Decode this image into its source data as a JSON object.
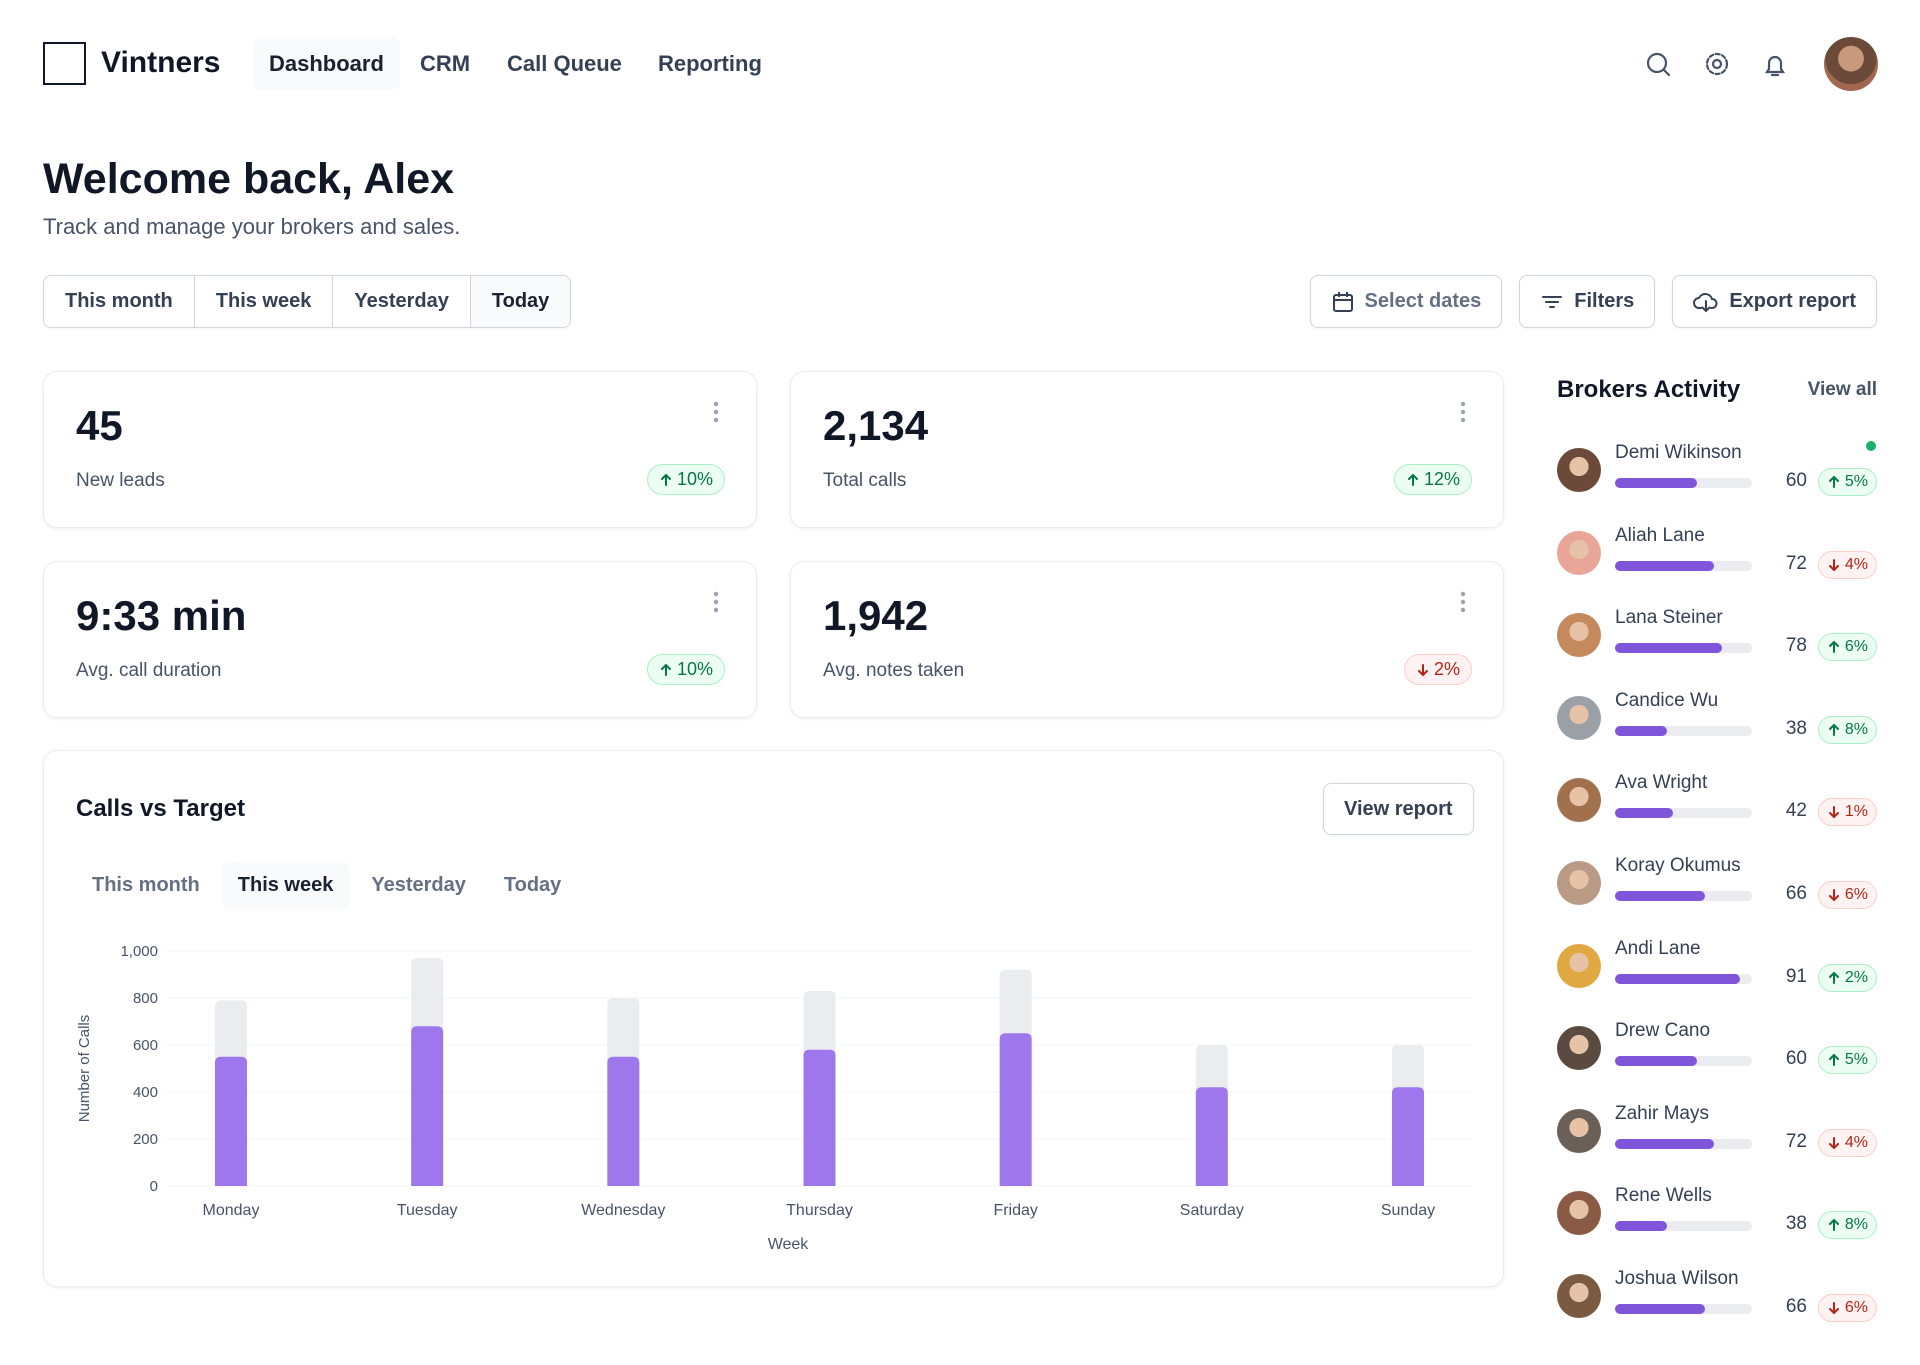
{
  "header": {
    "brand": "Vintners",
    "nav": [
      "Dashboard",
      "CRM",
      "Call Queue",
      "Reporting"
    ],
    "active_nav": 0
  },
  "welcome": {
    "title": "Welcome back, Alex",
    "subtitle": "Track and manage your brokers and sales."
  },
  "range_tabs": {
    "items": [
      "This month",
      "This week",
      "Yesterday",
      "Today"
    ],
    "active": 3
  },
  "actions": [
    "Select dates",
    "Filters",
    "Export report"
  ],
  "stats": [
    {
      "value": "45",
      "label": "New leads",
      "change": "10%",
      "trend": "up"
    },
    {
      "value": "2,134",
      "label": "Total calls",
      "change": "12%",
      "trend": "up"
    },
    {
      "value": "9:33 min",
      "label": "Avg. call duration",
      "change": "10%",
      "trend": "up"
    },
    {
      "value": "1,942",
      "label": "Avg. notes taken",
      "change": "2%",
      "trend": "down"
    }
  ],
  "chart_data": {
    "type": "bar",
    "title": "Calls vs Target",
    "button": "View report",
    "tabs": [
      "This month",
      "This week",
      "Yesterday",
      "Today"
    ],
    "active_tab": 1,
    "x_label": "Week",
    "y_label": "Number of Calls",
    "categories": [
      "Monday",
      "Tuesday",
      "Wednesday",
      "Thursday",
      "Friday",
      "Saturday",
      "Sunday"
    ],
    "series": [
      {
        "color": "#eaecf0",
        "values": [
          790,
          970,
          800,
          830,
          920,
          600,
          600
        ]
      },
      {
        "color": "#9e77ed",
        "values": [
          550,
          680,
          550,
          580,
          650,
          420,
          420
        ]
      }
    ],
    "ylim": [
      0,
      1000
    ],
    "yticks": [
      0,
      200,
      400,
      600,
      800,
      {
        "value": 1000,
        "label": "1,000"
      }
    ],
    "grid": true
  },
  "brokers": {
    "title": "Brokers Activity",
    "link": "View all",
    "items": [
      {
        "name": "Demi Wikinson",
        "value": 60,
        "change": "5%",
        "trend": "up"
      },
      {
        "name": "Aliah Lane",
        "value": 72,
        "change": "4%",
        "trend": "down"
      },
      {
        "name": "Lana Steiner",
        "value": 78,
        "change": "6%",
        "trend": "up"
      },
      {
        "name": "Candice Wu",
        "value": 38,
        "change": "8%",
        "trend": "up"
      },
      {
        "name": "Ava Wright",
        "value": 42,
        "change": "1%",
        "trend": "down"
      },
      {
        "name": "Koray Okumus",
        "value": 66,
        "change": "6%",
        "trend": "down"
      },
      {
        "name": "Andi Lane",
        "value": 91,
        "change": "2%",
        "trend": "up"
      },
      {
        "name": "Drew Cano",
        "value": 60,
        "change": "5%",
        "trend": "up"
      },
      {
        "name": "Zahir Mays",
        "value": 72,
        "change": "4%",
        "trend": "down"
      },
      {
        "name": "Rene Wells",
        "value": 38,
        "change": "8%",
        "trend": "up"
      },
      {
        "name": "Joshua Wilson",
        "value": 66,
        "change": "6%",
        "trend": "down"
      }
    ]
  }
}
